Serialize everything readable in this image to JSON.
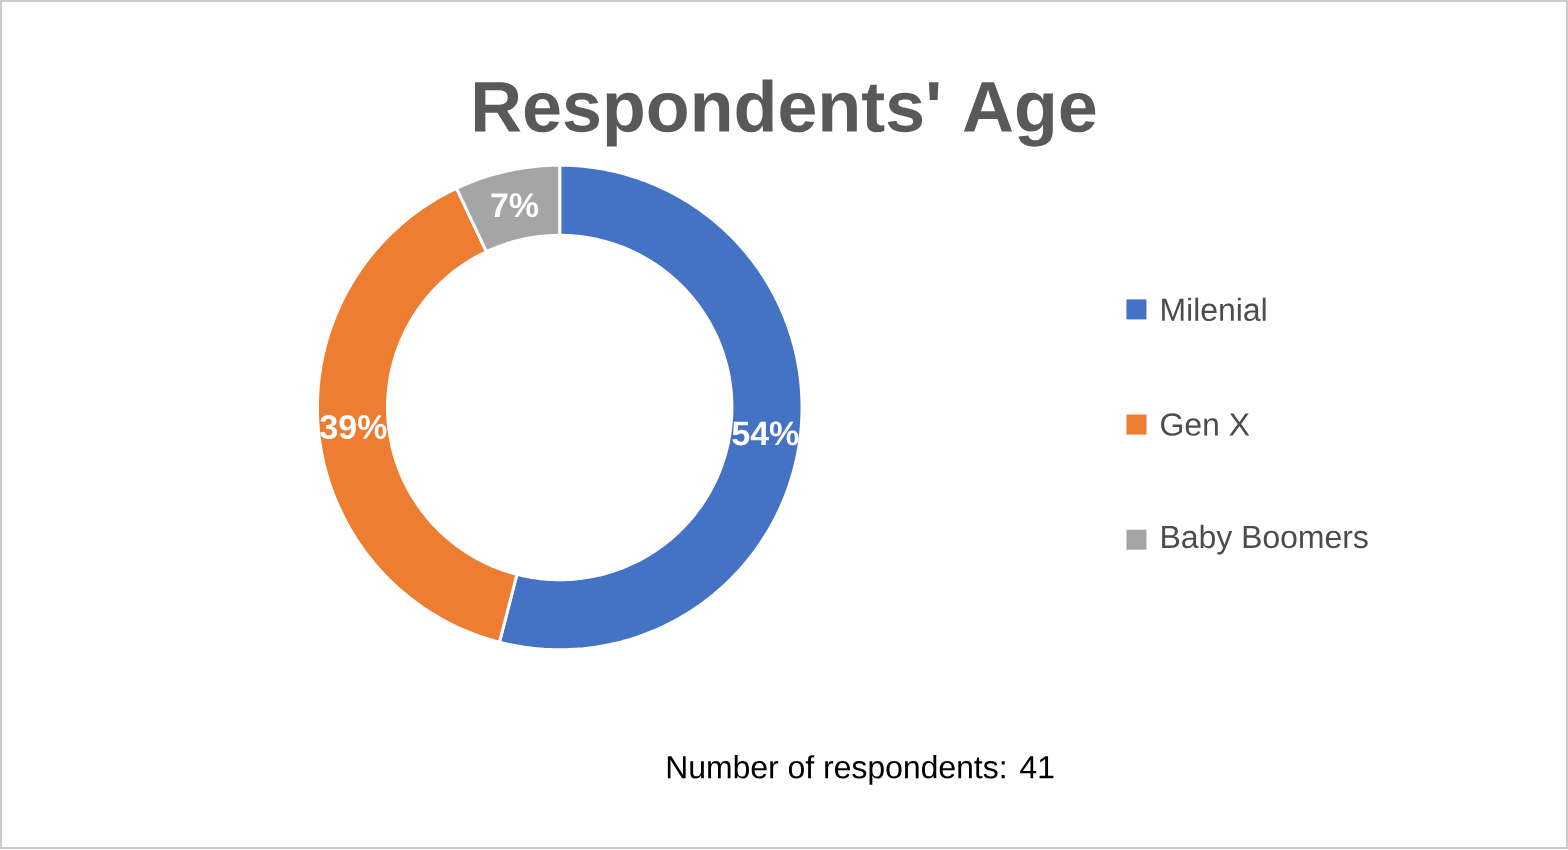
{
  "chart_data": {
    "type": "donut",
    "title": "Respondents' Age",
    "categories": [
      "Milenial",
      "Gen X",
      "Baby Boomers"
    ],
    "values": [
      54,
      39,
      7
    ],
    "colors": [
      "#4472c4",
      "#ed7d31",
      "#a5a5a5"
    ],
    "value_labels": [
      "54%",
      "39%",
      "7%"
    ],
    "legend": "right",
    "annotations": [
      "Number of respondents: 41"
    ]
  }
}
